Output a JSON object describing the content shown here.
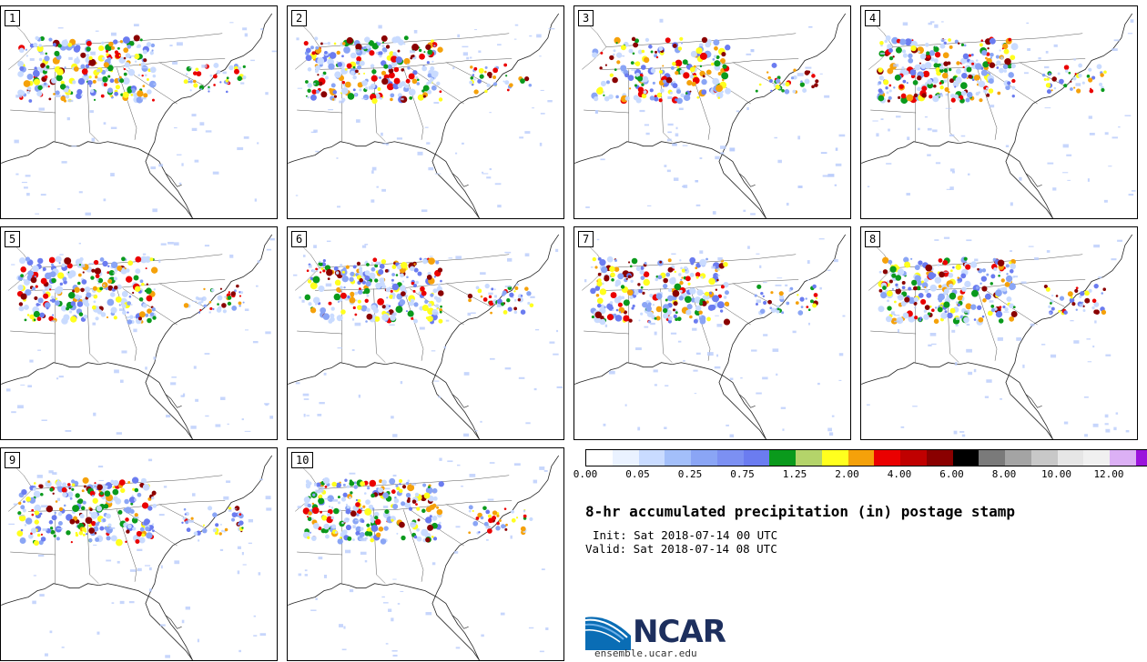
{
  "panels": [
    {
      "label": "1",
      "seed": 11
    },
    {
      "label": "2",
      "seed": 23
    },
    {
      "label": "3",
      "seed": 37
    },
    {
      "label": "4",
      "seed": 41
    },
    {
      "label": "5",
      "seed": 53
    },
    {
      "label": "6",
      "seed": 67
    },
    {
      "label": "7",
      "seed": 71
    },
    {
      "label": "8",
      "seed": 83
    },
    {
      "label": "9",
      "seed": 97
    },
    {
      "label": "10",
      "seed": 101
    }
  ],
  "colorbar": {
    "colors": [
      "#ffffff",
      "#eaf2ff",
      "#c9dbff",
      "#a3bffa",
      "#8aa5f5",
      "#7c90f2",
      "#6b7cf0",
      "#0a9a1c",
      "#b4d46a",
      "#ffff1e",
      "#f5a10a",
      "#ea0000",
      "#c00000",
      "#8a0000",
      "#000000",
      "#7a7a7a",
      "#a4a4a4",
      "#c8c8c8",
      "#e6e6e6",
      "#f0f0f0",
      "#dcb0f5",
      "#9b14dc"
    ],
    "tick_labels": [
      "0.00",
      "0.05",
      "0.25",
      "0.75",
      "1.25",
      "2.00",
      "4.00",
      "6.00",
      "8.00",
      "10.00",
      "12.00"
    ]
  },
  "title": "8-hr accumulated precipitation (in) postage stamp",
  "init": "Init: Sat 2018-07-14 00 UTC",
  "valid": "Valid: Sat 2018-07-14 08 UTC",
  "logo_text": "NCAR",
  "site": "ensemble.ucar.edu"
}
